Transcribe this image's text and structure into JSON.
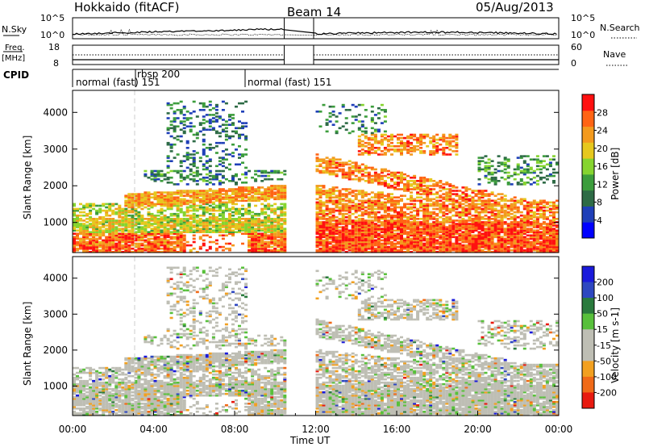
{
  "header": {
    "station": "Hokkaido (fitACF)",
    "beam": "Beam 14",
    "date": "05/Aug/2013"
  },
  "top_panels": {
    "nsky": {
      "left_label": "N.Sky",
      "left_ticks": [
        "10^5",
        "10^0"
      ],
      "right_label": "N.Search",
      "right_ticks": [
        "10^5",
        "10^0"
      ]
    },
    "freq": {
      "left_label_1": "Freq.",
      "left_label_2": "[MHz]",
      "left_ticks": [
        "18",
        "8"
      ],
      "right_label": "Nave",
      "right_ticks": [
        "60",
        "0"
      ]
    },
    "cpid": {
      "label": "CPID",
      "segments": [
        {
          "name": "normal (fast) 151",
          "start_hour": 0
        },
        {
          "name": "rbsp 200",
          "start_hour": 3.0
        },
        {
          "name": "normal (fast) 151",
          "start_hour": 8.55
        }
      ]
    }
  },
  "colors": {
    "power": [
      "#0000ff",
      "#1f3fb8",
      "#2e6b46",
      "#3c9d3c",
      "#86d430",
      "#e6c81e",
      "#f39a1e",
      "#ff6414",
      "#ff1010"
    ],
    "velocity": [
      "#1a1adb",
      "#2e47c0",
      "#2a7a3d",
      "#58c03b",
      "#bebeb4",
      "#bebeb4",
      "#f2a020",
      "#f06a18",
      "#e81a10"
    ]
  },
  "chart_data": [
    {
      "type": "heatmap",
      "name": "power-panel",
      "xlabel": "",
      "ylabel": "Slant Range [km]",
      "x_range_hours": [
        0,
        24
      ],
      "ylim": [
        180,
        4600
      ],
      "yticks": [
        "1000",
        "2000",
        "3000",
        "4000"
      ],
      "yticks_values": [
        1000,
        2000,
        3000,
        4000
      ],
      "colorbar": {
        "title": "Power [dB]",
        "range": [
          0,
          32
        ],
        "ticks": [
          "4",
          "8",
          "12",
          "16",
          "20",
          "24",
          "28"
        ],
        "tick_values": [
          4,
          8,
          12,
          16,
          20,
          24,
          28
        ]
      },
      "data_gaps_hours": [
        [
          10.45,
          11.9
        ]
      ]
    },
    {
      "type": "heatmap",
      "name": "velocity-panel",
      "xlabel": "Time UT",
      "ylabel": "Slant Range [km]",
      "x_range_hours": [
        0,
        24
      ],
      "xticks": [
        "00:00",
        "04:00",
        "08:00",
        "12:00",
        "16:00",
        "20:00",
        "00:00"
      ],
      "xticks_values": [
        0,
        4,
        8,
        12,
        16,
        20,
        24
      ],
      "ylim": [
        180,
        4600
      ],
      "yticks": [
        "1000",
        "2000",
        "3000",
        "4000"
      ],
      "yticks_values": [
        1000,
        2000,
        3000,
        4000
      ],
      "colorbar": {
        "title": "Velocity [m s-1]",
        "range": [
          -250,
          250
        ],
        "ticks": [
          "200",
          "100",
          "50",
          "15",
          "-15",
          "-50",
          "-100",
          "-200"
        ]
      },
      "data_gaps_hours": [
        [
          10.45,
          11.9
        ]
      ]
    }
  ]
}
